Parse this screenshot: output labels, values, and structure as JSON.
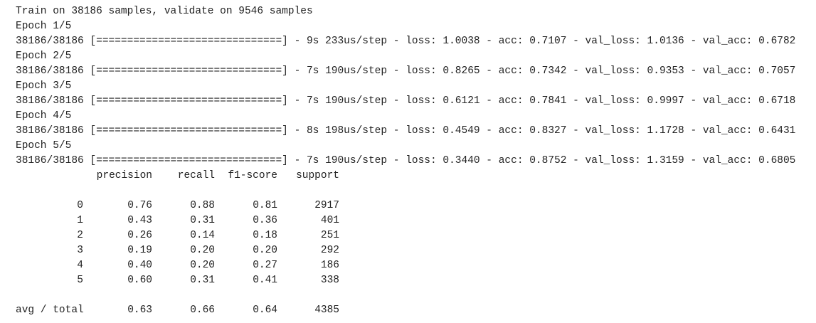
{
  "log": {
    "lines": [
      "Train on 38186 samples, validate on 9546 samples",
      "Epoch 1/5",
      "38186/38186 [==============================] - 9s 233us/step - loss: 1.0038 - acc: 0.7107 - val_loss: 1.0136 - val_acc: 0.6782",
      "Epoch 2/5",
      "38186/38186 [==============================] - 7s 190us/step - loss: 0.8265 - acc: 0.7342 - val_loss: 0.9353 - val_acc: 0.7057",
      "Epoch 3/5",
      "38186/38186 [==============================] - 7s 190us/step - loss: 0.6121 - acc: 0.7841 - val_loss: 0.9997 - val_acc: 0.6718",
      "Epoch 4/5",
      "38186/38186 [==============================] - 8s 198us/step - loss: 0.4549 - acc: 0.8327 - val_loss: 1.1728 - val_acc: 0.6431",
      "Epoch 5/5",
      "38186/38186 [==============================] - 7s 190us/step - loss: 0.3440 - acc: 0.8752 - val_loss: 1.3159 - val_acc: 0.6805"
    ]
  },
  "report": {
    "header": [
      "precision",
      "recall",
      "f1-score",
      "support"
    ],
    "rows": [
      [
        "0",
        "0.76",
        "0.88",
        "0.81",
        "2917"
      ],
      [
        "1",
        "0.43",
        "0.31",
        "0.36",
        "401"
      ],
      [
        "2",
        "0.26",
        "0.14",
        "0.18",
        "251"
      ],
      [
        "3",
        "0.19",
        "0.20",
        "0.20",
        "292"
      ],
      [
        "4",
        "0.40",
        "0.20",
        "0.27",
        "186"
      ],
      [
        "5",
        "0.60",
        "0.31",
        "0.41",
        "338"
      ]
    ],
    "total": [
      "avg / total",
      "0.63",
      "0.66",
      "0.64",
      "4385"
    ]
  }
}
